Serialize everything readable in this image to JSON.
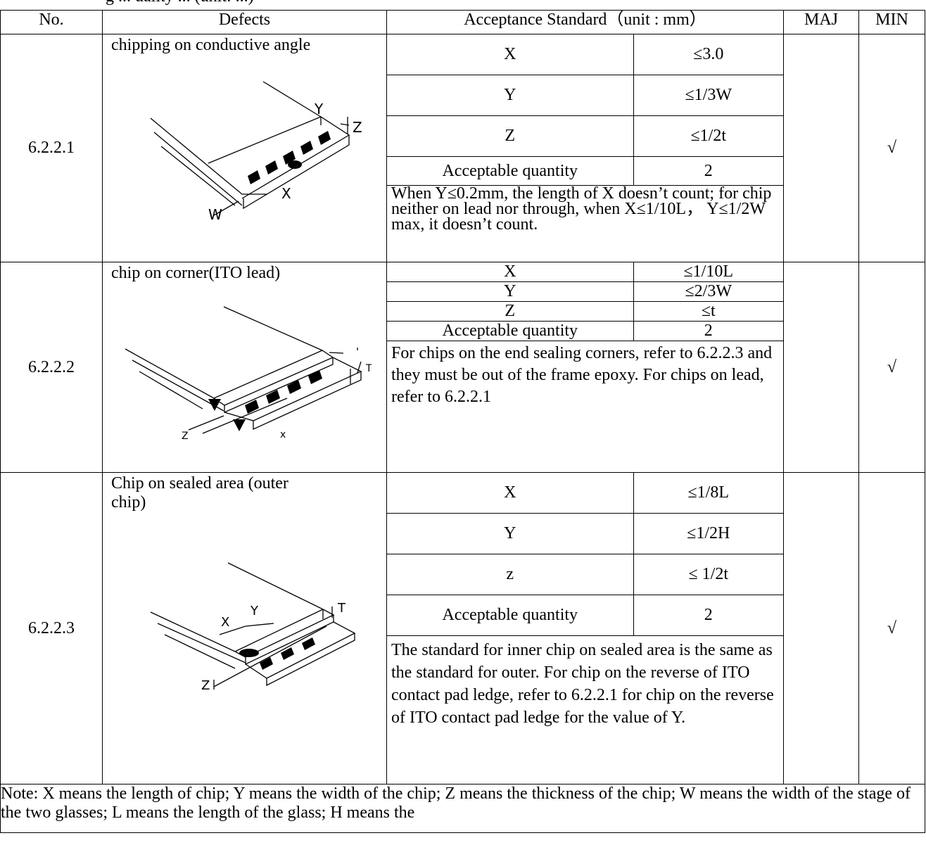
{
  "top_fragment": "g ... uality ... (unit: ...)",
  "header": {
    "no": "No.",
    "defects": "Defects",
    "acceptance": "Acceptance Standard（unit : mm）",
    "maj": "MAJ",
    "min": "MIN"
  },
  "rows": [
    {
      "no": "6.2.2.1",
      "defect": "chipping on conductive angle",
      "criteria": [
        {
          "param": "X",
          "value": "≤3.0"
        },
        {
          "param": "Y",
          "value": "≤1/3W"
        },
        {
          "param": "Z",
          "value": "≤1/2t"
        },
        {
          "param": "Acceptable quantity",
          "value": "2"
        }
      ],
      "note": "When Y≤0.2mm, the length of X doesn’t count; for chip neither on lead nor through, when X≤1/10L， Y≤1/2W max, it doesn’t count.",
      "maj": "",
      "min": "√",
      "diagram_labels": {
        "y": "Y",
        "z": "Z",
        "x": "X",
        "w": "W"
      }
    },
    {
      "no": "6.2.2.2",
      "defect": "chip on corner(ITO lead)",
      "criteria": [
        {
          "param": "X",
          "value": "≤1/10L"
        },
        {
          "param": "Y",
          "value": "≤2/3W"
        },
        {
          "param": "Z",
          "value": "≤t"
        },
        {
          "param": "Acceptable quantity",
          "value": "2"
        }
      ],
      "note": "For chips on the end sealing corners, refer to 6.2.2.3 and they must be out of the frame epoxy. For chips on lead, refer to 6.2.2.1",
      "maj": "",
      "min": "√",
      "diagram_labels": {
        "t": "T",
        "z": "Z",
        "x": "x"
      }
    },
    {
      "no": "6.2.2.3",
      "defect": "Chip on sealed area (outer chip)",
      "criteria": [
        {
          "param": "X",
          "value": "≤1/8L"
        },
        {
          "param": "Y",
          "value": "≤1/2H"
        },
        {
          "param": "z",
          "value": "≤ 1/2t"
        },
        {
          "param": "Acceptable quantity",
          "value": "2"
        }
      ],
      "note": "The standard for inner chip on sealed area is the same as the standard for outer. For chip on the reverse of ITO contact pad ledge, refer to 6.2.2.1 for chip on the reverse of ITO contact pad ledge for the value of Y.",
      "maj": "",
      "min": "√",
      "diagram_labels": {
        "t": "T",
        "x": "X",
        "y": "Y",
        "z": "Z"
      }
    }
  ],
  "footnote": "Note: X means the length of chip; Y means the width of the chip; Z means the thickness of the chip; W means the width of the stage of the two glasses; L means the length of the glass; H means the"
}
